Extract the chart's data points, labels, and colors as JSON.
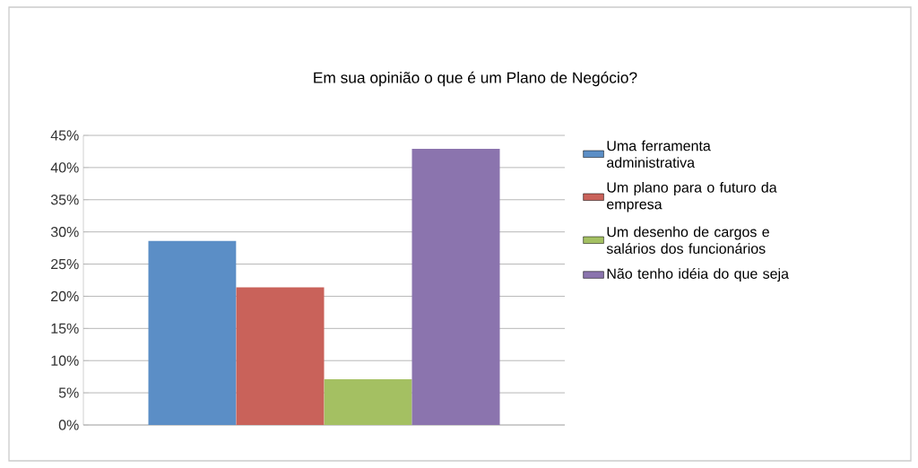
{
  "chart_data": {
    "type": "bar",
    "title": "Em sua opinião o que é um Plano de Negócio?",
    "categories": [
      null
    ],
    "series": [
      {
        "name": "Uma ferramenta administrativa",
        "color": "#5b8ec6",
        "values": [
          28.6
        ]
      },
      {
        "name": "Um plano para o futuro da empresa",
        "color": "#c9625a",
        "values": [
          21.4
        ]
      },
      {
        "name": "Um desenho de cargos e salários dos funcionários",
        "color": "#a4c062",
        "values": [
          7.1
        ]
      },
      {
        "name": "Não tenho idéia do que seja",
        "color": "#8b74ae",
        "values": [
          42.9
        ]
      }
    ],
    "ylim": [
      0,
      45
    ],
    "yticks": [
      {
        "value": 0,
        "label": "0%"
      },
      {
        "value": 5,
        "label": "5%"
      },
      {
        "value": 10,
        "label": "10%"
      },
      {
        "value": 15,
        "label": "15%"
      },
      {
        "value": 20,
        "label": "20%"
      },
      {
        "value": 25,
        "label": "25%"
      },
      {
        "value": 30,
        "label": "30%"
      },
      {
        "value": 35,
        "label": "35%"
      },
      {
        "value": 40,
        "label": "40%"
      },
      {
        "value": 45,
        "label": "45%"
      }
    ],
    "grid": "y",
    "legend": "right"
  }
}
